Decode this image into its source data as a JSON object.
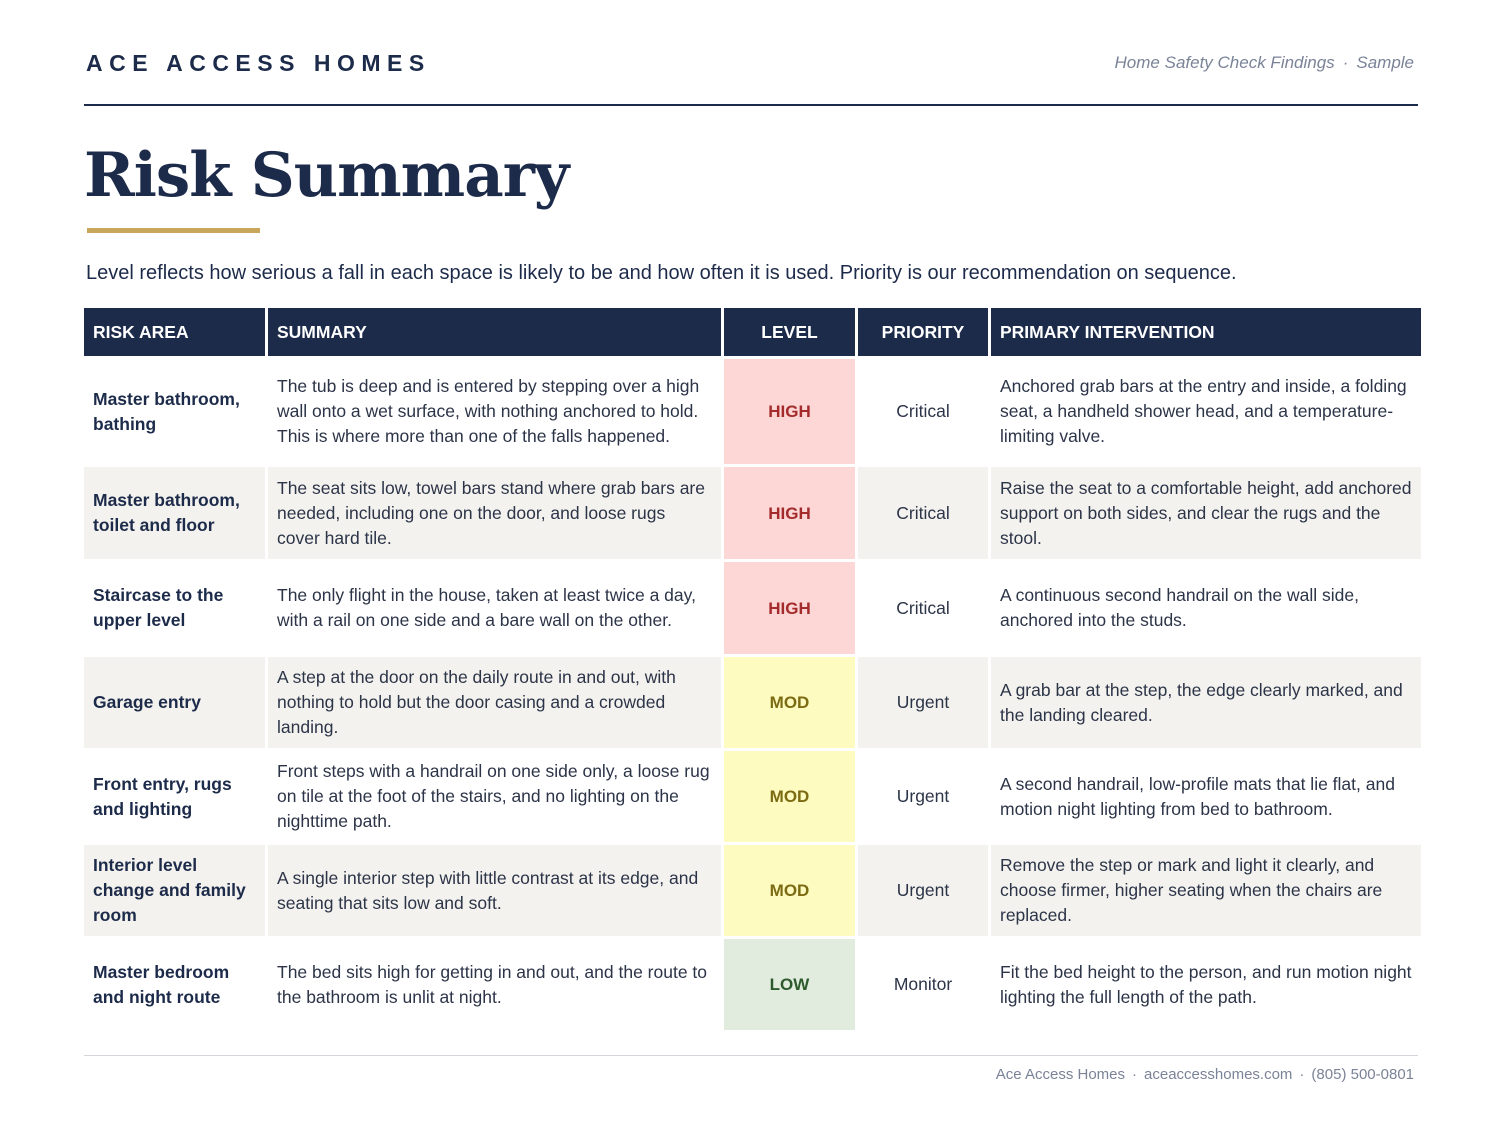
{
  "header": {
    "brand": "ACE ACCESS HOMES",
    "doc_title": "Home Safety Check Findings",
    "separator": "·",
    "doc_tag": "Sample"
  },
  "title": "Risk Summary",
  "intro": "Level reflects how serious a fall in each space is likely to be and how often it is used. Priority is our recommendation on sequence.",
  "table": {
    "headers": [
      "RISK AREA",
      "SUMMARY",
      "LEVEL",
      "PRIORITY",
      "PRIMARY INTERVENTION"
    ],
    "rows": [
      {
        "area": "Master bathroom, bathing",
        "summary": "The tub is deep and is entered by stepping over a high wall onto a wet surface, with nothing anchored to hold. This is where more than one of the falls happened.",
        "level": "HIGH",
        "priority": "Critical",
        "intervention": "Anchored grab bars at the entry and inside, a folding seat, a handheld shower head, and a temperature-limiting valve."
      },
      {
        "area": "Master bathroom, toilet and floor",
        "summary": "The seat sits low, towel bars stand where grab bars are needed, including one on the door, and loose rugs cover hard tile.",
        "level": "HIGH",
        "priority": "Critical",
        "intervention": "Raise the seat to a comfortable height, add anchored support on both sides, and clear the rugs and the stool."
      },
      {
        "area": "Staircase to the upper level",
        "summary": "The only flight in the house, taken at least twice a day, with a rail on one side and a bare wall on the other.",
        "level": "HIGH",
        "priority": "Critical",
        "intervention": "A continuous second handrail on the wall side, anchored into the studs."
      },
      {
        "area": "Garage entry",
        "summary": "A step at the door on the daily route in and out, with nothing to hold but the door casing and a crowded landing.",
        "level": "MOD",
        "priority": "Urgent",
        "intervention": "A grab bar at the step, the edge clearly marked, and the landing cleared."
      },
      {
        "area": "Front entry, rugs and lighting",
        "summary": "Front steps with a handrail on one side only, a loose rug on tile at the foot of the stairs, and no lighting on the nighttime path.",
        "level": "MOD",
        "priority": "Urgent",
        "intervention": "A second handrail, low-profile mats that lie flat, and motion night lighting from bed to bathroom."
      },
      {
        "area": "Interior level change and family room",
        "summary": "A single interior step with little contrast at its edge, and seating that sits low and soft.",
        "level": "MOD",
        "priority": "Urgent",
        "intervention": "Remove the step or mark and light it clearly, and choose firmer, higher seating when the chairs are replaced."
      },
      {
        "area": "Master bedroom and night route",
        "summary": "The bed sits high for getting in and out, and the route to the bathroom is unlit at night.",
        "level": "LOW",
        "priority": "Monitor",
        "intervention": "Fit the bed height to the person, and run motion night lighting the full length of the path."
      }
    ]
  },
  "level_colors": {
    "HIGH": {
      "bg": "#fdd6d6",
      "fg": "#a32b2b"
    },
    "MOD": {
      "bg": "#fdfbc0",
      "fg": "#7c6b12"
    },
    "LOW": {
      "bg": "#e1ecdf",
      "fg": "#2d5a2d"
    }
  },
  "footer": {
    "company": "Ace Access Homes",
    "separator": "·",
    "website": "aceaccesshomes.com",
    "phone": "(805) 500-0801"
  }
}
